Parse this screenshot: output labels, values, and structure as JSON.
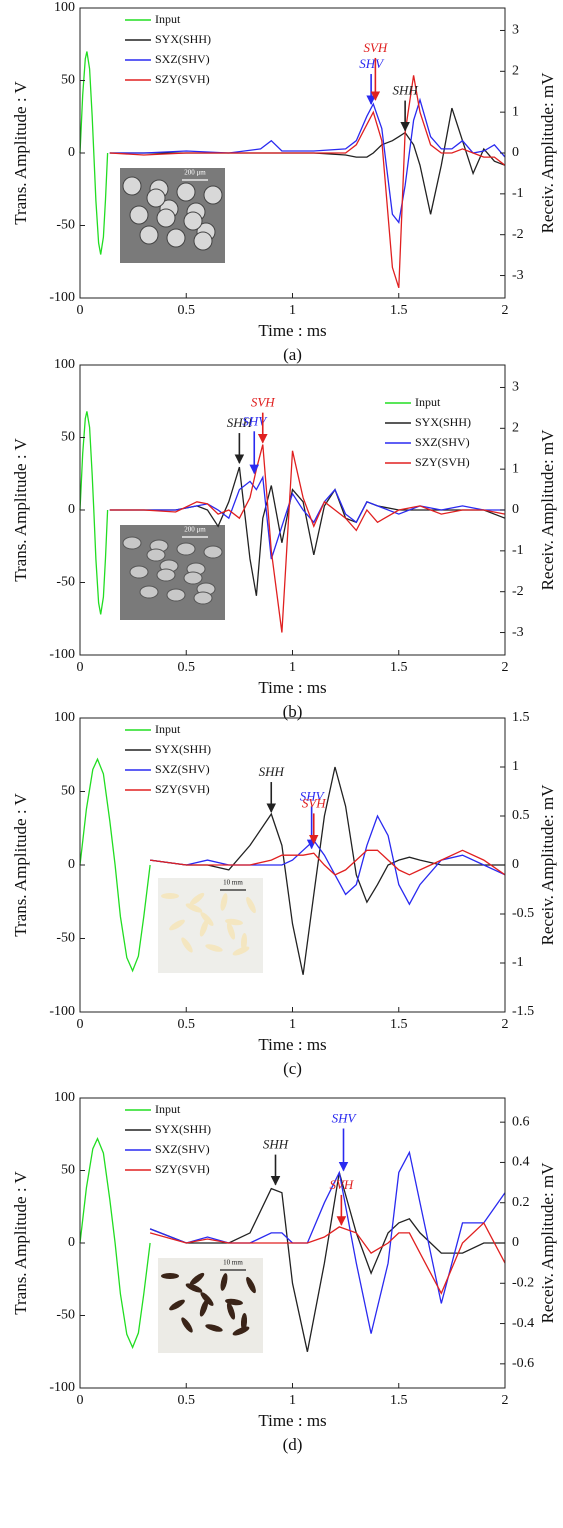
{
  "chart_data": [
    {
      "type": "line",
      "xlabel": "Time : ms",
      "ylabel": "Trans. Amplitude : V",
      "y2label": "Receiv. Amplitude: mV",
      "caption": "(a)",
      "xlim": [
        0,
        2
      ],
      "ylim": [
        -100,
        100
      ],
      "y2lim": [
        -3.55,
        3.55
      ],
      "xticks": [
        0,
        0.5,
        1,
        1.5,
        2
      ],
      "yticks": [
        -100,
        -50,
        0,
        50,
        100
      ],
      "y2ticks": [
        -3,
        -2,
        -1,
        0,
        1,
        2,
        3
      ],
      "legend": "upper left",
      "inset_scale": "200 μm",
      "x": [
        0.14,
        0.3,
        0.5,
        0.7,
        0.85,
        0.9,
        0.95,
        1.1,
        1.25,
        1.3,
        1.35,
        1.38,
        1.42,
        1.47,
        1.5,
        1.53,
        1.57,
        1.6,
        1.65,
        1.7,
        1.75,
        1.8,
        1.85,
        1.9,
        1.95,
        2.0
      ],
      "series": [
        {
          "name": "Input",
          "color": "#22dd22",
          "axis": "y",
          "x": [
            0,
            0.0125,
            0.025,
            0.0325,
            0.045,
            0.0575,
            0.065,
            0.075,
            0.0875,
            0.0975,
            0.11,
            0.12,
            0.13
          ],
          "values": [
            0,
            40,
            65,
            70,
            58,
            25,
            0,
            -33,
            -62,
            -70,
            -58,
            -32,
            0
          ]
        },
        {
          "name": "SYX(SHH)",
          "color": "#222222",
          "axis": "y2",
          "values": [
            0,
            0,
            0,
            0,
            0,
            0,
            0,
            0,
            -0.05,
            -0.1,
            -0.1,
            0,
            0.2,
            0.3,
            0.4,
            0.5,
            0.2,
            -0.3,
            -1.5,
            -0.3,
            1.1,
            0.3,
            -0.5,
            0.1,
            -0.2,
            -0.3
          ]
        },
        {
          "name": "SXZ(SHV)",
          "color": "#2a2af0",
          "axis": "y2",
          "values": [
            0,
            0,
            0.05,
            0,
            0.1,
            0.3,
            0.05,
            0.05,
            0.1,
            0.3,
            0.9,
            1.2,
            0.6,
            -1.5,
            -1.7,
            -0.8,
            0.8,
            1.3,
            0.4,
            0.1,
            0.1,
            0.3,
            0,
            0.05,
            0.2,
            -0.1
          ]
        },
        {
          "name": "SZY(SVH)",
          "color": "#e02020",
          "axis": "y2",
          "values": [
            0,
            -0.05,
            0,
            0,
            0,
            0,
            0,
            0,
            0,
            0.2,
            0.7,
            1.0,
            0.3,
            -2.8,
            -3.3,
            0.5,
            1.9,
            1.0,
            0.2,
            0,
            0,
            0.1,
            0,
            -0.1,
            -0.1,
            -0.3
          ]
        }
      ],
      "annotations": [
        {
          "text": "SHV",
          "color": "#2a2af0",
          "x": 1.37,
          "y": 1.15
        },
        {
          "text": "SVH",
          "color": "#e02020",
          "x": 1.39,
          "y": 1.25
        },
        {
          "text": "SHH",
          "color": "#222222",
          "x": 1.53,
          "y": 0.5
        }
      ]
    },
    {
      "type": "line",
      "xlabel": "Time : ms",
      "ylabel": "Trans. Amplitude : V",
      "y2label": "Receiv. Amplitude: mV",
      "caption": "(b)",
      "xlim": [
        0,
        2
      ],
      "ylim": [
        -100,
        100
      ],
      "y2lim": [
        -3.55,
        3.55
      ],
      "xticks": [
        0,
        0.5,
        1,
        1.5,
        2
      ],
      "yticks": [
        -100,
        -50,
        0,
        50,
        100
      ],
      "y2ticks": [
        -3,
        -2,
        -1,
        0,
        1,
        2,
        3
      ],
      "legend": "upper right",
      "inset_scale": "200 μm",
      "x": [
        0.14,
        0.3,
        0.45,
        0.55,
        0.6,
        0.65,
        0.7,
        0.75,
        0.8,
        0.83,
        0.86,
        0.9,
        0.95,
        1.0,
        1.05,
        1.1,
        1.15,
        1.2,
        1.25,
        1.3,
        1.35,
        1.4,
        1.5,
        1.6,
        1.7,
        1.8,
        1.9,
        2.0
      ],
      "series": [
        {
          "name": "Input",
          "color": "#22dd22",
          "axis": "y",
          "x": [
            0,
            0.0125,
            0.025,
            0.0325,
            0.045,
            0.0575,
            0.065,
            0.075,
            0.0875,
            0.0975,
            0.11,
            0.12,
            0.13
          ],
          "values": [
            0,
            39,
            63,
            68,
            57,
            24,
            0,
            -34,
            -64,
            -72,
            -60,
            -33,
            0
          ]
        },
        {
          "name": "SYX(SHH)",
          "color": "#222222",
          "axis": "y2",
          "values": [
            0,
            0,
            0,
            0.1,
            0,
            -0.4,
            0.2,
            1.05,
            -1.2,
            -2.1,
            -0.2,
            0.6,
            -0.8,
            0.5,
            0.2,
            -1.1,
            0.1,
            0.5,
            -0.2,
            -0.3,
            0.2,
            0.1,
            0,
            0,
            0,
            0,
            0,
            -0.2
          ]
        },
        {
          "name": "SXZ(SHV)",
          "color": "#2a2af0",
          "axis": "y2",
          "values": [
            0,
            0,
            0,
            0.1,
            0.15,
            0,
            -0.2,
            0.5,
            0.7,
            0.5,
            0.8,
            -1.2,
            -0.4,
            0.4,
            0,
            -0.3,
            0.2,
            0.5,
            -0.1,
            -0.3,
            0.2,
            0.1,
            -0.1,
            0.1,
            0,
            0.1,
            0,
            0
          ]
        },
        {
          "name": "SZY(SVH)",
          "color": "#e02020",
          "axis": "y2",
          "values": [
            0,
            0,
            -0.05,
            0.2,
            0.15,
            -0.1,
            0,
            -0.2,
            0.3,
            1.0,
            1.6,
            -1.0,
            -3.0,
            1.45,
            0.3,
            -0.4,
            0.2,
            0,
            -0.2,
            -0.5,
            0,
            -0.3,
            0,
            0.1,
            -0.1,
            0,
            0,
            -0.1
          ]
        }
      ],
      "annotations": [
        {
          "text": "SHH",
          "color": "#222222",
          "x": 0.75,
          "y": 1.1
        },
        {
          "text": "SHV",
          "color": "#2a2af0",
          "x": 0.82,
          "y": 0.85
        },
        {
          "text": "SVH",
          "color": "#e02020",
          "x": 0.86,
          "y": 1.6
        }
      ]
    },
    {
      "type": "line",
      "xlabel": "Time : ms",
      "ylabel": "Trans. Amplitude : V",
      "y2label": "Receiv. Amplitude: mV",
      "caption": "(c)",
      "xlim": [
        0,
        2
      ],
      "ylim": [
        -100,
        100
      ],
      "y2lim": [
        -1.5,
        1.5
      ],
      "xticks": [
        0,
        0.5,
        1,
        1.5,
        2
      ],
      "yticks": [
        -100,
        -50,
        0,
        50,
        100
      ],
      "y2ticks": [
        -1.5,
        -1,
        -0.5,
        0,
        0.5,
        1,
        1.5
      ],
      "legend": "upper left",
      "inset_scale": "10 mm",
      "x": [
        0.33,
        0.5,
        0.6,
        0.7,
        0.8,
        0.9,
        0.95,
        1.0,
        1.05,
        1.1,
        1.15,
        1.2,
        1.25,
        1.3,
        1.35,
        1.4,
        1.45,
        1.5,
        1.55,
        1.6,
        1.7,
        1.8,
        1.9,
        2.0
      ],
      "series": [
        {
          "name": "Input",
          "color": "#22dd22",
          "axis": "y",
          "x": [
            0,
            0.03,
            0.06,
            0.0825,
            0.11,
            0.14,
            0.165,
            0.19,
            0.22,
            0.2475,
            0.275,
            0.3,
            0.33
          ],
          "values": [
            0,
            38,
            65,
            72,
            62,
            30,
            0,
            -35,
            -63,
            -72,
            -62,
            -35,
            0
          ]
        },
        {
          "name": "SYX(SHH)",
          "color": "#222222",
          "axis": "y2",
          "values": [
            0.05,
            0,
            0,
            -0.05,
            0.2,
            0.52,
            0.2,
            -0.6,
            -1.12,
            -0.3,
            0.5,
            1.0,
            0.6,
            -0.1,
            -0.38,
            -0.2,
            0,
            0.05,
            0.08,
            0.05,
            0,
            0,
            0,
            0
          ]
        },
        {
          "name": "SXZ(SHV)",
          "color": "#2a2af0",
          "axis": "y2",
          "values": [
            0.05,
            0,
            0.05,
            0,
            0,
            0,
            0,
            0.05,
            0.15,
            0.25,
            0.1,
            -0.1,
            -0.3,
            -0.2,
            0.2,
            0.5,
            0.3,
            -0.2,
            -0.4,
            -0.2,
            0.05,
            0.1,
            0,
            -0.1
          ]
        },
        {
          "name": "SZY(SVH)",
          "color": "#e02020",
          "axis": "y2",
          "values": [
            0.05,
            0,
            0,
            0,
            0,
            0.05,
            0.1,
            0.1,
            0.1,
            0.12,
            0,
            -0.1,
            -0.05,
            0.05,
            0.15,
            0.15,
            0.05,
            -0.05,
            -0.1,
            -0.05,
            0.05,
            0.15,
            0.05,
            -0.1
          ]
        }
      ],
      "annotations": [
        {
          "text": "SHH",
          "color": "#222222",
          "x": 0.9,
          "y": 0.52
        },
        {
          "text": "SHV",
          "color": "#2a2af0",
          "x": 1.09,
          "y": 0.15
        },
        {
          "text": "SVH",
          "color": "#e02020",
          "x": 1.1,
          "y": 0.2
        }
      ]
    },
    {
      "type": "line",
      "xlabel": "Time : ms",
      "ylabel": "Trans. Amplitude : V",
      "y2label": "Receiv. Amplitude: mV",
      "caption": "(d)",
      "xlim": [
        0,
        2
      ],
      "ylim": [
        -100,
        100
      ],
      "y2lim": [
        -0.72,
        0.72
      ],
      "xticks": [
        0,
        0.5,
        1,
        1.5,
        2
      ],
      "yticks": [
        -100,
        -50,
        0,
        50,
        100
      ],
      "y2ticks": [
        -0.6,
        -0.4,
        -0.2,
        0,
        0.2,
        0.4,
        0.6
      ],
      "legend": "upper left",
      "inset_scale": "10 mm",
      "x": [
        0.33,
        0.5,
        0.6,
        0.7,
        0.8,
        0.9,
        0.95,
        1.0,
        1.07,
        1.15,
        1.22,
        1.3,
        1.37,
        1.45,
        1.5,
        1.55,
        1.6,
        1.7,
        1.8,
        1.9,
        2.0
      ],
      "series": [
        {
          "name": "Input",
          "color": "#22dd22",
          "axis": "y",
          "x": [
            0,
            0.03,
            0.06,
            0.0825,
            0.11,
            0.14,
            0.165,
            0.19,
            0.22,
            0.2475,
            0.275,
            0.3,
            0.33
          ],
          "values": [
            0,
            38,
            65,
            72,
            62,
            30,
            0,
            -35,
            -63,
            -72,
            -62,
            -35,
            0
          ]
        },
        {
          "name": "SYX(SHH)",
          "color": "#222222",
          "axis": "y2",
          "values": [
            0.07,
            0,
            0,
            0,
            0.05,
            0.27,
            0.25,
            -0.2,
            -0.54,
            -0.1,
            0.35,
            0.05,
            -0.15,
            0.05,
            0.1,
            0.12,
            0.05,
            -0.05,
            -0.05,
            0,
            0
          ]
        },
        {
          "name": "SXZ(SHV)",
          "color": "#2a2af0",
          "axis": "y2",
          "values": [
            0.07,
            0,
            0.03,
            0,
            0,
            0.05,
            0.05,
            0,
            0,
            0.2,
            0.35,
            -0.1,
            -0.45,
            -0.1,
            0.35,
            0.45,
            0.2,
            -0.3,
            0.1,
            0.1,
            0.25
          ]
        },
        {
          "name": "SZY(SVH)",
          "color": "#e02020",
          "axis": "y2",
          "values": [
            0.05,
            0,
            0.02,
            0,
            0,
            0,
            0,
            0,
            0,
            0.03,
            0.08,
            0.05,
            -0.05,
            0,
            0.05,
            0.05,
            -0.05,
            -0.25,
            0,
            0.1,
            -0.1
          ]
        }
      ],
      "annotations": [
        {
          "text": "SHH",
          "color": "#222222",
          "x": 0.92,
          "y": 0.28
        },
        {
          "text": "SHV",
          "color": "#2a2af0",
          "x": 1.24,
          "y": 0.35
        },
        {
          "text": "SVH",
          "color": "#e02020",
          "x": 1.23,
          "y": 0.08
        }
      ]
    }
  ]
}
